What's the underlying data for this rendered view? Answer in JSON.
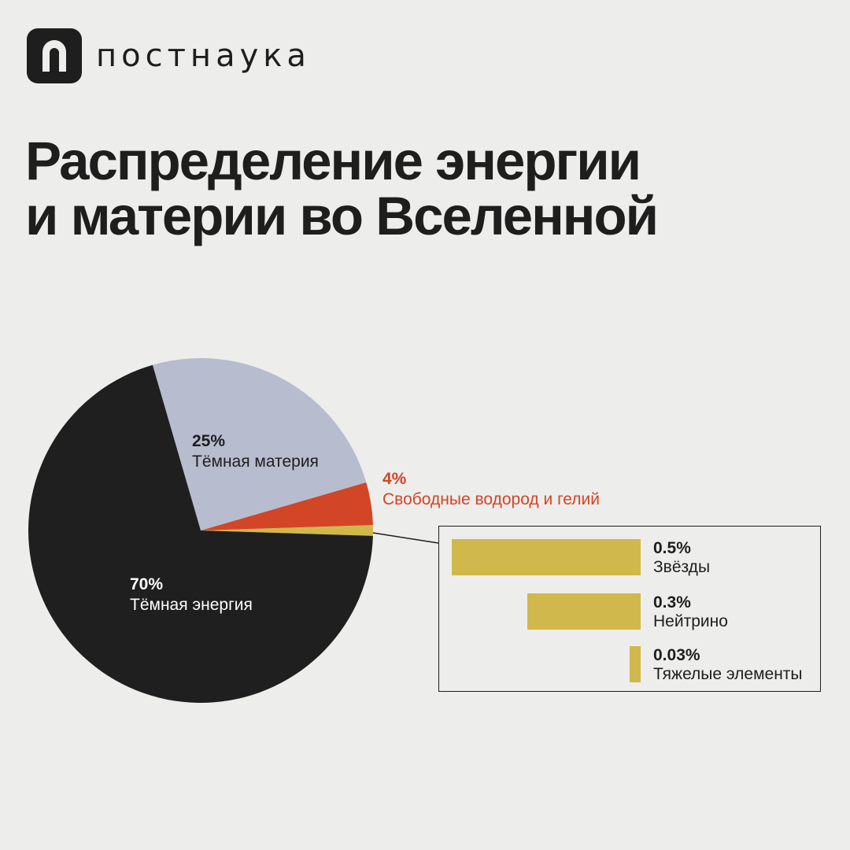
{
  "brand": {
    "logo_text": "постнаука",
    "mark_color": "#1e1e1e"
  },
  "title": {
    "line1": "Распределение энергии",
    "line2": "и материи во Вселенной"
  },
  "colors": {
    "background": "#ededeb",
    "dark_energy": "#1f1f1f",
    "dark_matter": "#b8bccf",
    "hydrogen_helium": "#d24527",
    "stars_etc": "#d1b84c"
  },
  "chart_data": [
    {
      "type": "pie",
      "slices": [
        {
          "label": "Тёмная энергия",
          "value": 70,
          "value_text": "70%",
          "color": "#1f1f1f",
          "label_color": "#ffffff"
        },
        {
          "label": "Тёмная материя",
          "value": 25,
          "value_text": "25%",
          "color": "#b8bccf",
          "label_color": "#1e1e1e"
        },
        {
          "label": "Свободные водород и гелий",
          "value": 4,
          "value_text": "4%",
          "color": "#d24527",
          "label_color": "#d24527"
        },
        {
          "label": "Звёзды, нейтрино и тяжелые элементы",
          "value": 1,
          "color": "#d1b84c"
        }
      ]
    },
    {
      "type": "bar",
      "orientation": "horizontal",
      "categories": [
        "Звёзды",
        "Нейтрино",
        "Тяжелые элементы"
      ],
      "values": [
        0.5,
        0.3,
        0.03
      ],
      "value_texts": [
        "0.5%",
        "0.3%",
        "0.03%"
      ],
      "color": "#d1b84c"
    }
  ]
}
